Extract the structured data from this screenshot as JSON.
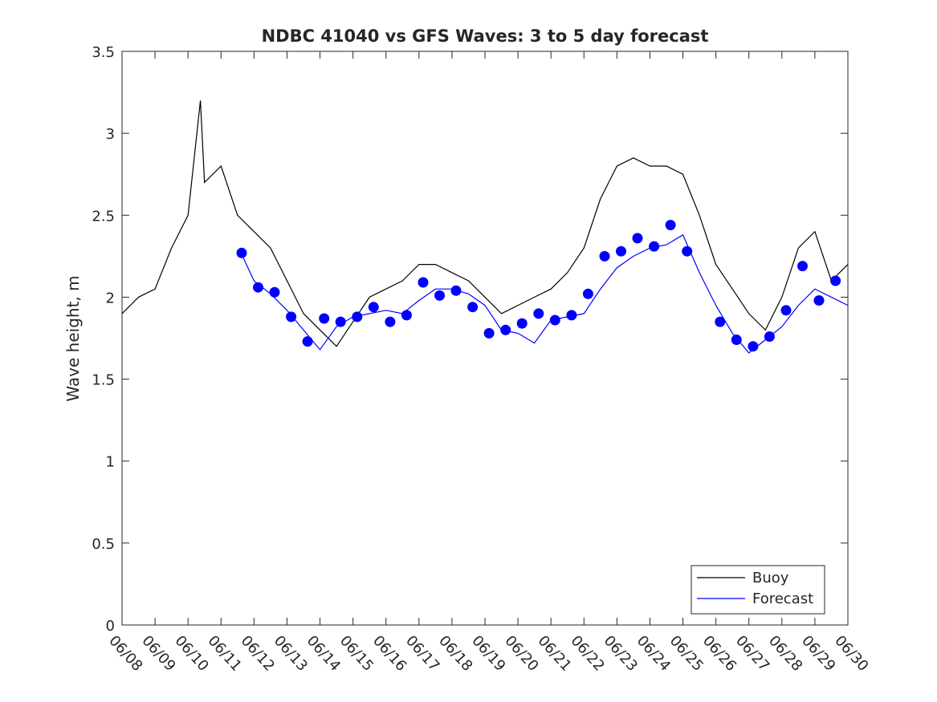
{
  "chart_data": {
    "type": "line",
    "title": "NDBC 41040 vs GFS Waves: 3 to 5 day forecast",
    "xlabel": "",
    "ylabel": "Wave height, m",
    "xlim": [
      "06/08",
      "06/30"
    ],
    "ylim": [
      0,
      3.5
    ],
    "yticks": [
      0,
      0.5,
      1,
      1.5,
      2,
      2.5,
      3,
      3.5
    ],
    "xtick_labels": [
      "06/08",
      "06/09",
      "06/10",
      "06/11",
      "06/12",
      "06/13",
      "06/14",
      "06/15",
      "06/16",
      "06/17",
      "06/18",
      "06/19",
      "06/20",
      "06/21",
      "06/22",
      "06/23",
      "06/24",
      "06/25",
      "06/26",
      "06/27",
      "06/28",
      "06/29",
      "06/30"
    ],
    "grid": false,
    "legend": {
      "position": "bottom-right",
      "entries": [
        "Buoy",
        "Forecast"
      ]
    },
    "colors": {
      "buoy": "#000000",
      "forecast": "#0000ff",
      "markers": "#0000ff"
    },
    "series": [
      {
        "name": "Buoy",
        "x": [
          "06/08 00:00",
          "06/08 12:00",
          "06/09 00:00",
          "06/09 12:00",
          "06/10 00:00",
          "06/10 09:00",
          "06/10 12:00",
          "06/11 00:00",
          "06/11 12:00",
          "06/12 00:00",
          "06/12 12:00",
          "06/13 00:00",
          "06/13 12:00",
          "06/14 00:00",
          "06/14 12:00",
          "06/15 00:00",
          "06/15 12:00",
          "06/16 00:00",
          "06/16 12:00",
          "06/17 00:00",
          "06/17 12:00",
          "06/18 00:00",
          "06/18 12:00",
          "06/19 00:00",
          "06/19 12:00",
          "06/20 00:00",
          "06/20 12:00",
          "06/21 00:00",
          "06/21 12:00",
          "06/22 00:00",
          "06/22 12:00",
          "06/23 00:00",
          "06/23 12:00",
          "06/24 00:00",
          "06/24 12:00",
          "06/25 00:00",
          "06/25 12:00",
          "06/26 00:00",
          "06/26 12:00",
          "06/27 00:00",
          "06/27 12:00",
          "06/28 00:00",
          "06/28 12:00",
          "06/29 00:00",
          "06/29 12:00",
          "06/30 00:00"
        ],
        "y": [
          1.9,
          2.0,
          2.05,
          2.3,
          2.5,
          3.2,
          2.7,
          2.8,
          2.5,
          2.4,
          2.3,
          2.1,
          1.9,
          1.8,
          1.7,
          1.85,
          2.0,
          2.05,
          2.1,
          2.2,
          2.2,
          2.15,
          2.1,
          2.0,
          1.9,
          1.95,
          2.0,
          2.05,
          2.15,
          2.3,
          2.6,
          2.8,
          2.85,
          2.8,
          2.8,
          2.75,
          2.5,
          2.2,
          2.05,
          1.9,
          1.8,
          2.0,
          2.3,
          2.4,
          2.1,
          2.2
        ]
      },
      {
        "name": "Forecast",
        "x": [
          "06/11 14:00",
          "06/12 00:00",
          "06/12 12:00",
          "06/13 00:00",
          "06/13 12:00",
          "06/14 00:00",
          "06/14 12:00",
          "06/15 00:00",
          "06/15 12:00",
          "06/16 00:00",
          "06/16 12:00",
          "06/17 00:00",
          "06/17 12:00",
          "06/18 00:00",
          "06/18 12:00",
          "06/19 00:00",
          "06/19 12:00",
          "06/20 00:00",
          "06/20 12:00",
          "06/21 00:00",
          "06/21 12:00",
          "06/22 00:00",
          "06/22 12:00",
          "06/23 00:00",
          "06/23 12:00",
          "06/24 00:00",
          "06/24 12:00",
          "06/25 00:00",
          "06/25 12:00",
          "06/26 00:00",
          "06/26 12:00",
          "06/27 00:00",
          "06/27 12:00",
          "06/28 00:00",
          "06/28 12:00",
          "06/29 00:00",
          "06/29 12:00",
          "06/30 00:00"
        ],
        "y": [
          2.28,
          2.1,
          2.02,
          1.92,
          1.8,
          1.68,
          1.82,
          1.88,
          1.9,
          1.92,
          1.9,
          1.98,
          2.05,
          2.05,
          2.02,
          1.95,
          1.8,
          1.78,
          1.72,
          1.86,
          1.88,
          1.9,
          2.05,
          2.18,
          2.25,
          2.3,
          2.32,
          2.38,
          2.15,
          1.95,
          1.78,
          1.66,
          1.74,
          1.82,
          1.95,
          2.05,
          2.0,
          1.95
        ]
      },
      {
        "name": "",
        "role": "forecast markers",
        "x": [
          "06/11 15:00",
          "06/12 03:00",
          "06/12 15:00",
          "06/13 03:00",
          "06/13 15:00",
          "06/14 03:00",
          "06/14 15:00",
          "06/15 03:00",
          "06/15 15:00",
          "06/16 03:00",
          "06/16 15:00",
          "06/17 03:00",
          "06/17 15:00",
          "06/18 03:00",
          "06/18 15:00",
          "06/19 03:00",
          "06/19 15:00",
          "06/20 03:00",
          "06/20 15:00",
          "06/21 03:00",
          "06/21 15:00",
          "06/22 03:00",
          "06/22 15:00",
          "06/23 03:00",
          "06/23 15:00",
          "06/24 03:00",
          "06/24 15:00",
          "06/25 03:00",
          "06/26 03:00",
          "06/26 15:00",
          "06/27 03:00",
          "06/27 15:00",
          "06/28 03:00",
          "06/28 15:00",
          "06/29 03:00",
          "06/29 15:00"
        ],
        "y": [
          2.27,
          2.06,
          2.03,
          1.88,
          1.73,
          1.87,
          1.85,
          1.88,
          1.94,
          1.85,
          1.89,
          2.09,
          2.01,
          2.04,
          1.94,
          1.78,
          1.8,
          1.84,
          1.9,
          1.86,
          1.89,
          2.02,
          2.25,
          2.28,
          2.36,
          2.31,
          2.44,
          2.28,
          1.85,
          1.74,
          1.7,
          1.76,
          1.92,
          2.19,
          1.98,
          2.1
        ]
      }
    ]
  }
}
